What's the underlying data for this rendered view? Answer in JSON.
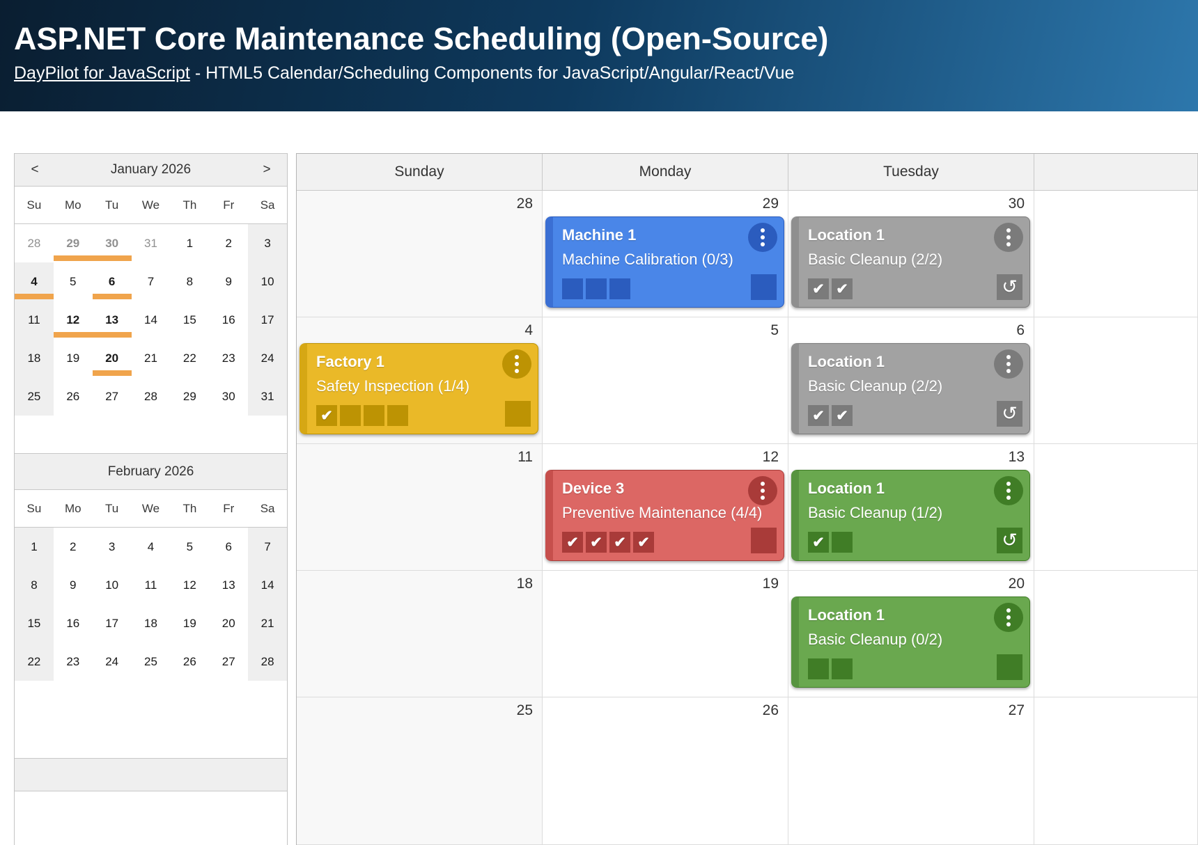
{
  "header": {
    "title": "ASP.NET Core Maintenance Scheduling (Open-Source)",
    "link_text": "DayPilot for JavaScript",
    "subtitle_rest": " - HTML5 Calendar/Scheduling Components for JavaScript/Angular/React/Vue"
  },
  "colors": {
    "accent_orange": "#f0a44c",
    "header_gradient_left": "#0a1e31",
    "header_gradient_right": "#2d77ac",
    "event_colors": {
      "blue": {
        "body": "#4a86e8",
        "bar": "#3b6fd3",
        "dark": "#2b5cbe"
      },
      "gray": {
        "body": "#a2a2a2",
        "bar": "#8f8f8f",
        "dark": "#7b7b7b"
      },
      "yellow": {
        "body": "#eab928",
        "bar": "#d6a714",
        "dark": "#bd9303"
      },
      "red": {
        "body": "#dc6764",
        "bar": "#c64f4c",
        "dark": "#a93b39"
      },
      "green": {
        "body": "#6aa84f",
        "bar": "#579440",
        "dark": "#407d26"
      }
    }
  },
  "navigator": {
    "prev_label": "<",
    "next_label": ">",
    "day_headers": [
      "Su",
      "Mo",
      "Tu",
      "We",
      "Th",
      "Fr",
      "Sa"
    ],
    "months": [
      {
        "title": "January 2026",
        "show_nav": true,
        "weeks": [
          [
            {
              "d": "28",
              "muted": true,
              "noshade": true
            },
            {
              "d": "29",
              "muted": true,
              "bold": true,
              "bar": true
            },
            {
              "d": "30",
              "muted": true,
              "bold": true,
              "bar": true
            },
            {
              "d": "31",
              "muted": true
            },
            {
              "d": "1"
            },
            {
              "d": "2"
            },
            {
              "d": "3"
            }
          ],
          [
            {
              "d": "4",
              "bold": true,
              "bar": true
            },
            {
              "d": "5"
            },
            {
              "d": "6",
              "bold": true,
              "bar": true
            },
            {
              "d": "7"
            },
            {
              "d": "8"
            },
            {
              "d": "9"
            },
            {
              "d": "10"
            }
          ],
          [
            {
              "d": "11"
            },
            {
              "d": "12",
              "bold": true,
              "bar": true
            },
            {
              "d": "13",
              "bold": true,
              "bar": true
            },
            {
              "d": "14"
            },
            {
              "d": "15"
            },
            {
              "d": "16"
            },
            {
              "d": "17"
            }
          ],
          [
            {
              "d": "18"
            },
            {
              "d": "19"
            },
            {
              "d": "20",
              "bold": true,
              "bar": true
            },
            {
              "d": "21"
            },
            {
              "d": "22"
            },
            {
              "d": "23"
            },
            {
              "d": "24"
            }
          ],
          [
            {
              "d": "25"
            },
            {
              "d": "26"
            },
            {
              "d": "27"
            },
            {
              "d": "28"
            },
            {
              "d": "29"
            },
            {
              "d": "30"
            },
            {
              "d": "31"
            }
          ]
        ]
      },
      {
        "title": "February 2026",
        "show_nav": false,
        "weeks": [
          [
            {
              "d": "1"
            },
            {
              "d": "2"
            },
            {
              "d": "3"
            },
            {
              "d": "4"
            },
            {
              "d": "5"
            },
            {
              "d": "6"
            },
            {
              "d": "7"
            }
          ],
          [
            {
              "d": "8"
            },
            {
              "d": "9"
            },
            {
              "d": "10"
            },
            {
              "d": "11"
            },
            {
              "d": "12"
            },
            {
              "d": "13"
            },
            {
              "d": "14"
            }
          ],
          [
            {
              "d": "15"
            },
            {
              "d": "16"
            },
            {
              "d": "17"
            },
            {
              "d": "18"
            },
            {
              "d": "19"
            },
            {
              "d": "20"
            },
            {
              "d": "21"
            }
          ],
          [
            {
              "d": "22"
            },
            {
              "d": "23"
            },
            {
              "d": "24"
            },
            {
              "d": "25"
            },
            {
              "d": "26"
            },
            {
              "d": "27"
            },
            {
              "d": "28"
            }
          ]
        ]
      }
    ]
  },
  "calendar": {
    "day_headers": [
      "Sunday",
      "Monday",
      "Tuesday",
      ""
    ],
    "weeks": [
      {
        "days": [
          {
            "num": "28"
          },
          {
            "num": "29",
            "event": {
              "title": "Machine 1",
              "task": "Machine Calibration (0/3)",
              "color": "blue",
              "checks": [
                false,
                false,
                false
              ],
              "recurring": false
            }
          },
          {
            "num": "30",
            "event": {
              "title": "Location 1",
              "task": "Basic Cleanup (2/2)",
              "color": "gray",
              "checks": [
                true,
                true
              ],
              "recurring": true
            }
          },
          {
            "num": ""
          }
        ]
      },
      {
        "days": [
          {
            "num": "4",
            "event": {
              "title": "Factory 1",
              "task": "Safety Inspection (1/4)",
              "color": "yellow",
              "checks": [
                true,
                false,
                false,
                false
              ],
              "recurring": false
            }
          },
          {
            "num": "5"
          },
          {
            "num": "6",
            "event": {
              "title": "Location 1",
              "task": "Basic Cleanup (2/2)",
              "color": "gray",
              "checks": [
                true,
                true
              ],
              "recurring": true
            }
          },
          {
            "num": ""
          }
        ]
      },
      {
        "days": [
          {
            "num": "11"
          },
          {
            "num": "12",
            "event": {
              "title": "Device 3",
              "task": "Preventive Maintenance (4/4)",
              "color": "red",
              "checks": [
                true,
                true,
                true,
                true
              ],
              "recurring": false
            }
          },
          {
            "num": "13",
            "event": {
              "title": "Location 1",
              "task": "Basic Cleanup (1/2)",
              "color": "green",
              "checks": [
                true,
                false
              ],
              "recurring": true
            }
          },
          {
            "num": ""
          }
        ]
      },
      {
        "days": [
          {
            "num": "18"
          },
          {
            "num": "19"
          },
          {
            "num": "20",
            "event": {
              "title": "Location 1",
              "task": "Basic Cleanup (0/2)",
              "color": "green",
              "checks": [
                false,
                false
              ],
              "recurring": false
            }
          },
          {
            "num": ""
          }
        ]
      },
      {
        "days": [
          {
            "num": "25"
          },
          {
            "num": "26"
          },
          {
            "num": "27"
          },
          {
            "num": ""
          }
        ]
      }
    ]
  },
  "icons": {
    "kebab": "kebab-menu-icon",
    "recurring_glyph": "↺",
    "check_glyph": "✔"
  }
}
